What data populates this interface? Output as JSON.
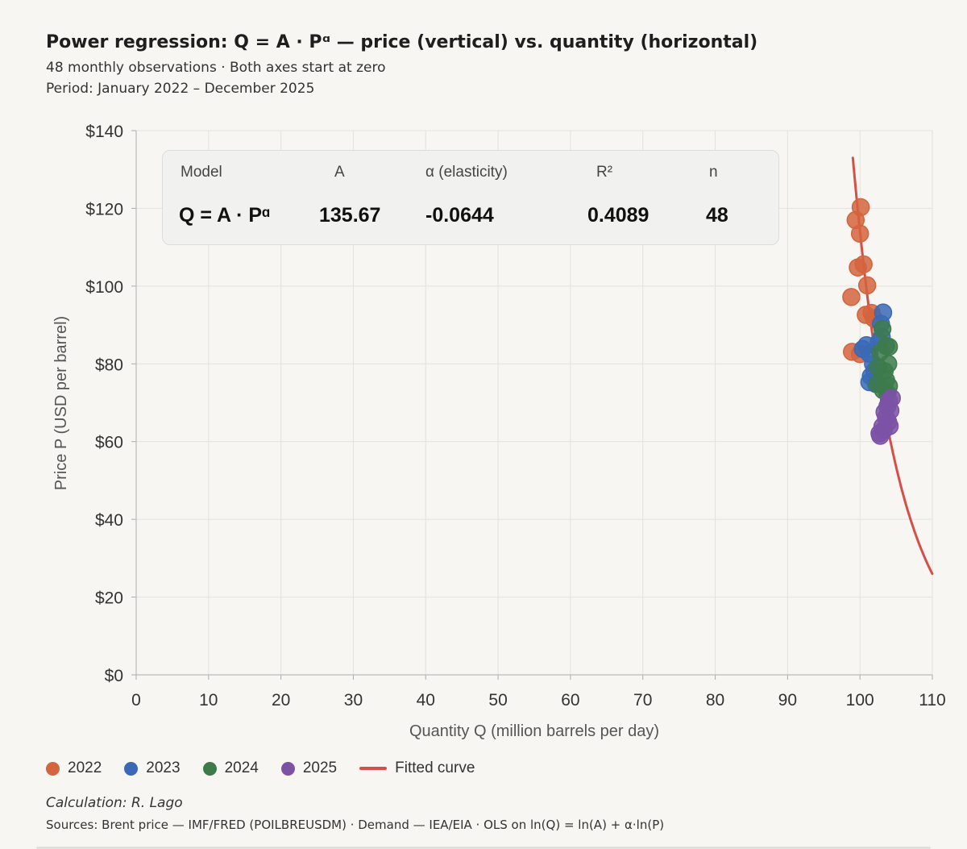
{
  "header": {
    "title": "Power regression: Q = A · Pᵅ — price (vertical) vs. quantity (horizontal)",
    "subtitle": "48 monthly observations · Both axes start at zero",
    "period": "Period: January 2022 – December 2025"
  },
  "stats": {
    "headers": {
      "model": "Model",
      "a": "A",
      "alpha": "α (elasticity)",
      "r2": "R²",
      "n": "n"
    },
    "values": {
      "model": "Q = A · Pᵅ",
      "a": "135.67",
      "alpha": "-0.0644",
      "r2": "0.4089",
      "n": "48"
    }
  },
  "chart_data": {
    "type": "scatter",
    "title": "Power regression: Q = A · Pᵅ — price (vertical) vs. quantity (horizontal)",
    "xlabel": "Quantity Q (million barrels per day)",
    "ylabel": "Price P (USD per barrel)",
    "xlim": [
      0,
      110
    ],
    "ylim": [
      0,
      140
    ],
    "x_ticks": [
      "0",
      "10",
      "20",
      "30",
      "40",
      "50",
      "60",
      "70",
      "80",
      "90",
      "100",
      "110"
    ],
    "y_ticks": [
      "$0",
      "$20",
      "$40",
      "$60",
      "$80",
      "$100",
      "$120",
      "$140"
    ],
    "grid": true,
    "fit": {
      "A": 135.67,
      "alpha": -0.0644,
      "p_range": [
        26,
        133
      ]
    },
    "series": [
      {
        "name": "2022",
        "color": "#d4643d",
        "points": [
          {
            "x": 100.1,
            "y": 120.3
          },
          {
            "x": 99.4,
            "y": 117.0
          },
          {
            "x": 100.0,
            "y": 113.5
          },
          {
            "x": 100.5,
            "y": 105.6
          },
          {
            "x": 99.7,
            "y": 104.8
          },
          {
            "x": 101.0,
            "y": 100.2
          },
          {
            "x": 98.8,
            "y": 97.2
          },
          {
            "x": 100.8,
            "y": 92.6
          },
          {
            "x": 101.6,
            "y": 93.1
          },
          {
            "x": 101.9,
            "y": 91.7
          },
          {
            "x": 98.9,
            "y": 83.1
          },
          {
            "x": 100.0,
            "y": 82.5
          }
        ]
      },
      {
        "name": "2023",
        "color": "#3a6ab6",
        "points": [
          {
            "x": 103.2,
            "y": 93.2
          },
          {
            "x": 102.9,
            "y": 90.3
          },
          {
            "x": 103.0,
            "y": 86.9
          },
          {
            "x": 102.6,
            "y": 85.6
          },
          {
            "x": 100.9,
            "y": 84.8
          },
          {
            "x": 100.4,
            "y": 83.8
          },
          {
            "x": 101.3,
            "y": 82.6
          },
          {
            "x": 101.8,
            "y": 80.0
          },
          {
            "x": 102.0,
            "y": 78.2
          },
          {
            "x": 101.5,
            "y": 76.8
          },
          {
            "x": 101.3,
            "y": 75.3
          },
          {
            "x": 102.2,
            "y": 74.8
          }
        ]
      },
      {
        "name": "2024",
        "color": "#3d7a4c",
        "points": [
          {
            "x": 103.1,
            "y": 89.0
          },
          {
            "x": 103.6,
            "y": 84.6
          },
          {
            "x": 104.0,
            "y": 84.4
          },
          {
            "x": 102.8,
            "y": 83.0
          },
          {
            "x": 103.9,
            "y": 80.0
          },
          {
            "x": 102.5,
            "y": 79.1
          },
          {
            "x": 103.4,
            "y": 78.1
          },
          {
            "x": 103.6,
            "y": 75.8
          },
          {
            "x": 102.4,
            "y": 74.8
          },
          {
            "x": 103.2,
            "y": 73.2
          },
          {
            "x": 103.8,
            "y": 72.4
          },
          {
            "x": 104.0,
            "y": 74.3
          }
        ]
      },
      {
        "name": "2025",
        "color": "#7b52a6",
        "points": [
          {
            "x": 104.4,
            "y": 71.2
          },
          {
            "x": 104.0,
            "y": 70.5
          },
          {
            "x": 103.8,
            "y": 69.1
          },
          {
            "x": 104.2,
            "y": 68.0
          },
          {
            "x": 103.4,
            "y": 67.6
          },
          {
            "x": 103.6,
            "y": 66.2
          },
          {
            "x": 103.9,
            "y": 65.0
          },
          {
            "x": 103.1,
            "y": 63.9
          },
          {
            "x": 104.1,
            "y": 64.0
          },
          {
            "x": 103.3,
            "y": 63.0
          },
          {
            "x": 102.7,
            "y": 62.1
          },
          {
            "x": 102.8,
            "y": 61.5
          }
        ]
      }
    ]
  },
  "legend": {
    "items": [
      {
        "label": "2022",
        "color": "#d4643d"
      },
      {
        "label": "2023",
        "color": "#3a6ab6"
      },
      {
        "label": "2024",
        "color": "#3d7a4c"
      },
      {
        "label": "2025",
        "color": "#7b52a6"
      }
    ],
    "fit_label": "Fitted curve",
    "fit_color": "#d64f47"
  },
  "footer": {
    "credit": "Calculation: R. Lago",
    "sources": "Sources: Brent price — IMF/FRED (POILBREUSDM) · Demand — IEA/EIA · OLS on ln(Q) = ln(A) + α·ln(P)"
  }
}
